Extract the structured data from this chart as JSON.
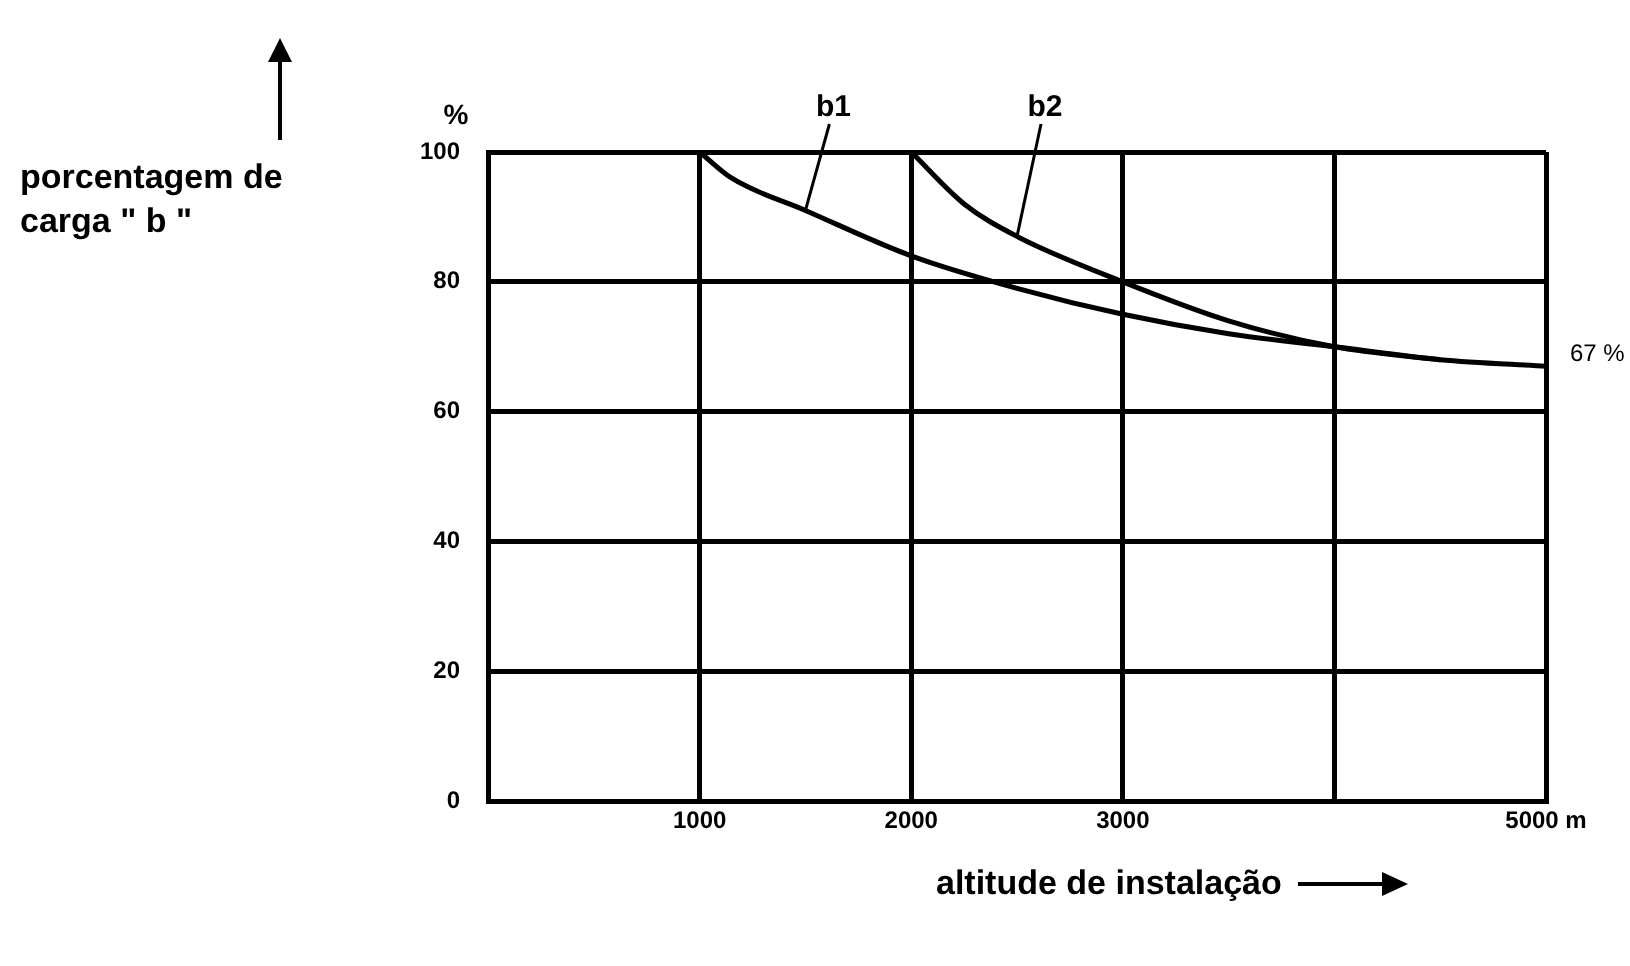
{
  "chart_data": {
    "type": "line",
    "ylabel": "porcentagem de carga \" b \"",
    "xlabel": "altitude de instalação",
    "annotations": [
      "%",
      {
        "text": "67 %",
        "x": 5000,
        "y": 67
      }
    ],
    "series": [
      {
        "name": "b1",
        "color": "#000000",
        "x": [
          1000,
          1150,
          1500,
          2000,
          2500,
          3000,
          3500,
          4000,
          4500,
          5000
        ],
        "values": [
          100,
          96,
          91,
          84,
          79,
          75,
          72,
          70,
          68,
          67
        ]
      },
      {
        "name": "b2",
        "color": "#000000",
        "x": [
          2000,
          2250,
          2500,
          3000,
          3500,
          4000,
          4500
        ],
        "values": [
          100,
          92,
          87,
          80,
          74,
          70,
          68
        ]
      }
    ],
    "xlim": [
      0,
      5000
    ],
    "xticks": [
      1000,
      2000,
      3000,
      {
        "value": 4000,
        "label": null
      },
      {
        "value": 5000,
        "label": "5000 m"
      }
    ],
    "ylim": [
      0,
      100
    ],
    "yticks": [
      0,
      20,
      40,
      60,
      80,
      100
    ],
    "grid": true,
    "legend": false,
    "marker": "none",
    "line_style": "solid"
  }
}
